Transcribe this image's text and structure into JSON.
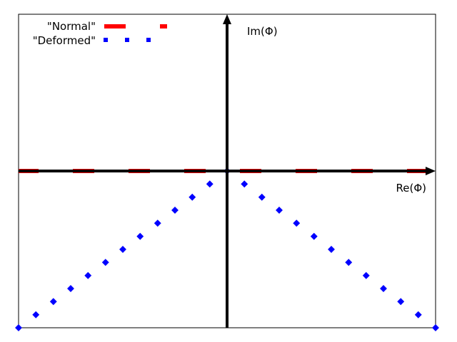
{
  "chart_data": {
    "type": "line",
    "title": "",
    "xlabel": "Re(Φ)",
    "ylabel": "Im(Φ)",
    "xlim": [
      -1,
      1
    ],
    "ylim": [
      -1,
      1
    ],
    "grid": false,
    "legend": {
      "placement": "top-left"
    },
    "axes_arrows": true,
    "series": [
      {
        "name": "\"Normal\"",
        "color": "#ff0000",
        "style": "dashed",
        "x": [
          -1,
          1
        ],
        "y": [
          0,
          0
        ]
      },
      {
        "name": "\"Deformed\"",
        "color": "#0000ff",
        "style": "dotted",
        "x": [
          -1,
          -0.917,
          -0.833,
          -0.75,
          -0.667,
          -0.583,
          -0.5,
          -0.417,
          -0.333,
          -0.25,
          -0.167,
          -0.083,
          0,
          0.083,
          0.167,
          0.25,
          0.333,
          0.417,
          0.5,
          0.583,
          0.667,
          0.75,
          0.833,
          0.917,
          1
        ],
        "y": [
          -1,
          -0.917,
          -0.833,
          -0.75,
          -0.667,
          -0.583,
          -0.5,
          -0.417,
          -0.333,
          -0.25,
          -0.167,
          -0.083,
          0,
          -0.083,
          -0.167,
          -0.25,
          -0.333,
          -0.417,
          -0.5,
          -0.583,
          -0.667,
          -0.75,
          -0.833,
          -0.917,
          -1
        ]
      }
    ]
  }
}
